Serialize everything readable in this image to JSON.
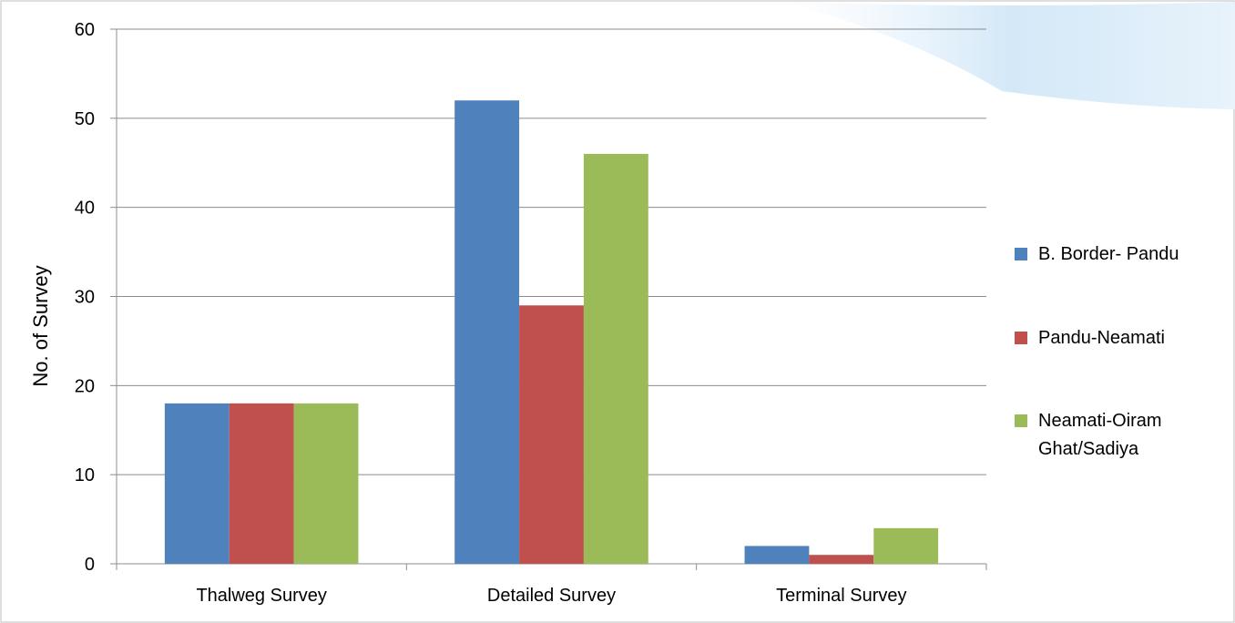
{
  "chart_data": {
    "type": "bar",
    "title": "",
    "xlabel": "",
    "ylabel": "No. of Survey",
    "ylim": [
      0,
      60
    ],
    "yticks": [
      0,
      10,
      20,
      30,
      40,
      50,
      60
    ],
    "grid": true,
    "legend_position": "right",
    "categories": [
      "Thalweg Survey",
      "Detailed Survey",
      "Terminal Survey"
    ],
    "series": [
      {
        "name": "B. Border- Pandu",
        "color": "#4F81BD",
        "values": [
          18,
          52,
          2
        ]
      },
      {
        "name": "Pandu-Neamati",
        "color": "#C0504D",
        "values": [
          18,
          29,
          1
        ]
      },
      {
        "name": "Neamati-Oiram Ghat/Sadiya",
        "legend_lines": [
          "Neamati-Oiram",
          "Ghat/Sadiya"
        ],
        "color": "#9BBB59",
        "values": [
          18,
          46,
          4
        ]
      }
    ]
  }
}
